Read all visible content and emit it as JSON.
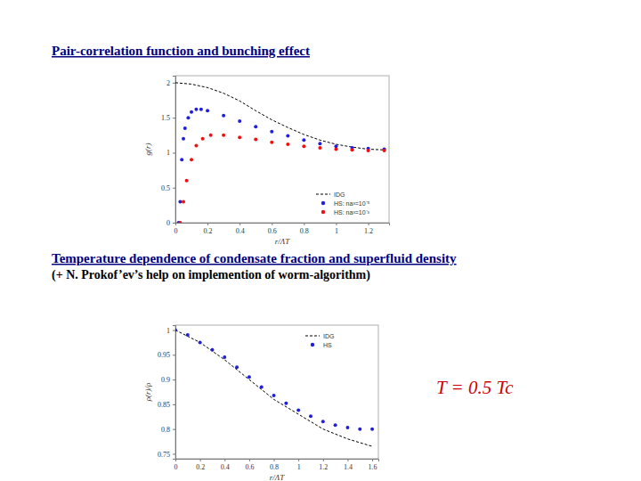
{
  "chart_data": [
    {
      "type": "line",
      "title": "Pair-correlation function and bunching effect",
      "x_label": "r/ΛT",
      "y_label": "g(r)",
      "xlim": [
        0,
        1.33
      ],
      "ylim": [
        0,
        2.1
      ],
      "xticks": [
        0,
        0.2,
        0.4,
        0.6,
        0.8,
        1,
        1.2
      ],
      "yticks": [
        0,
        0.5,
        1,
        1.5,
        2
      ],
      "legend": "lower right",
      "series": [
        {
          "name": "IDG",
          "type": "line",
          "line_style": "dashed",
          "color": "#000000",
          "x": [
            0,
            0.1,
            0.2,
            0.3,
            0.4,
            0.5,
            0.6,
            0.7,
            0.8,
            0.9,
            1.0,
            1.1,
            1.2,
            1.3
          ],
          "values": [
            2.0,
            1.98,
            1.93,
            1.85,
            1.74,
            1.6,
            1.47,
            1.36,
            1.26,
            1.18,
            1.12,
            1.08,
            1.05,
            1.04
          ]
        },
        {
          "name": "HS: na³=10⁻⁵",
          "type": "scatter",
          "marker": "circle",
          "color": "#1f1fdd",
          "x": [
            0.02,
            0.03,
            0.04,
            0.05,
            0.06,
            0.08,
            0.1,
            0.13,
            0.16,
            0.2,
            0.3,
            0.4,
            0.5,
            0.6,
            0.7,
            0.8,
            0.9,
            1.0,
            1.1,
            1.2,
            1.3
          ],
          "values": [
            0,
            0.3,
            0.9,
            1.2,
            1.35,
            1.5,
            1.58,
            1.62,
            1.62,
            1.6,
            1.53,
            1.45,
            1.37,
            1.3,
            1.24,
            1.18,
            1.13,
            1.09,
            1.07,
            1.06,
            1.05
          ]
        },
        {
          "name": "HS: na³=10⁻³",
          "type": "scatter",
          "marker": "circle",
          "color": "#ee1111",
          "x": [
            0.03,
            0.05,
            0.07,
            0.1,
            0.13,
            0.17,
            0.22,
            0.3,
            0.4,
            0.5,
            0.6,
            0.7,
            0.8,
            0.9,
            1.0,
            1.1,
            1.2,
            1.3
          ],
          "values": [
            0,
            0.3,
            0.6,
            0.9,
            1.1,
            1.2,
            1.25,
            1.25,
            1.22,
            1.19,
            1.15,
            1.12,
            1.09,
            1.07,
            1.05,
            1.04,
            1.03,
            1.03
          ]
        }
      ]
    },
    {
      "type": "line",
      "title": "Temperature dependence of condensate fraction and superfluid density",
      "subtitle": "(+ N. Prokof’ev’s help on implemention of worm-algorithm)",
      "annotation": "T = 0.5 Tc",
      "x_label": "r/ΛT",
      "y_label": "ρ(r)/ρ",
      "xlim": [
        0,
        1.65
      ],
      "ylim": [
        0.74,
        1.01
      ],
      "xticks": [
        0,
        0.2,
        0.4,
        0.6,
        0.8,
        1,
        1.2,
        1.4,
        1.6
      ],
      "yticks": [
        0.75,
        0.8,
        0.85,
        0.9,
        0.95,
        1
      ],
      "legend": "upper right",
      "series": [
        {
          "name": "IDG",
          "type": "line",
          "line_style": "dashed",
          "color": "#000000",
          "x": [
            0,
            0.2,
            0.4,
            0.6,
            0.8,
            1.0,
            1.2,
            1.4,
            1.6
          ],
          "values": [
            1.0,
            0.975,
            0.94,
            0.9,
            0.86,
            0.83,
            0.8,
            0.78,
            0.765
          ]
        },
        {
          "name": "HS",
          "type": "scatter",
          "marker": "circle",
          "color": "#1f1fdd",
          "x": [
            0,
            0.1,
            0.2,
            0.3,
            0.4,
            0.5,
            0.6,
            0.7,
            0.8,
            0.9,
            1.0,
            1.1,
            1.2,
            1.3,
            1.4,
            1.5,
            1.6
          ],
          "values": [
            1.0,
            0.99,
            0.975,
            0.96,
            0.945,
            0.925,
            0.905,
            0.885,
            0.868,
            0.852,
            0.838,
            0.826,
            0.815,
            0.808,
            0.803,
            0.8,
            0.8
          ]
        }
      ]
    }
  ]
}
